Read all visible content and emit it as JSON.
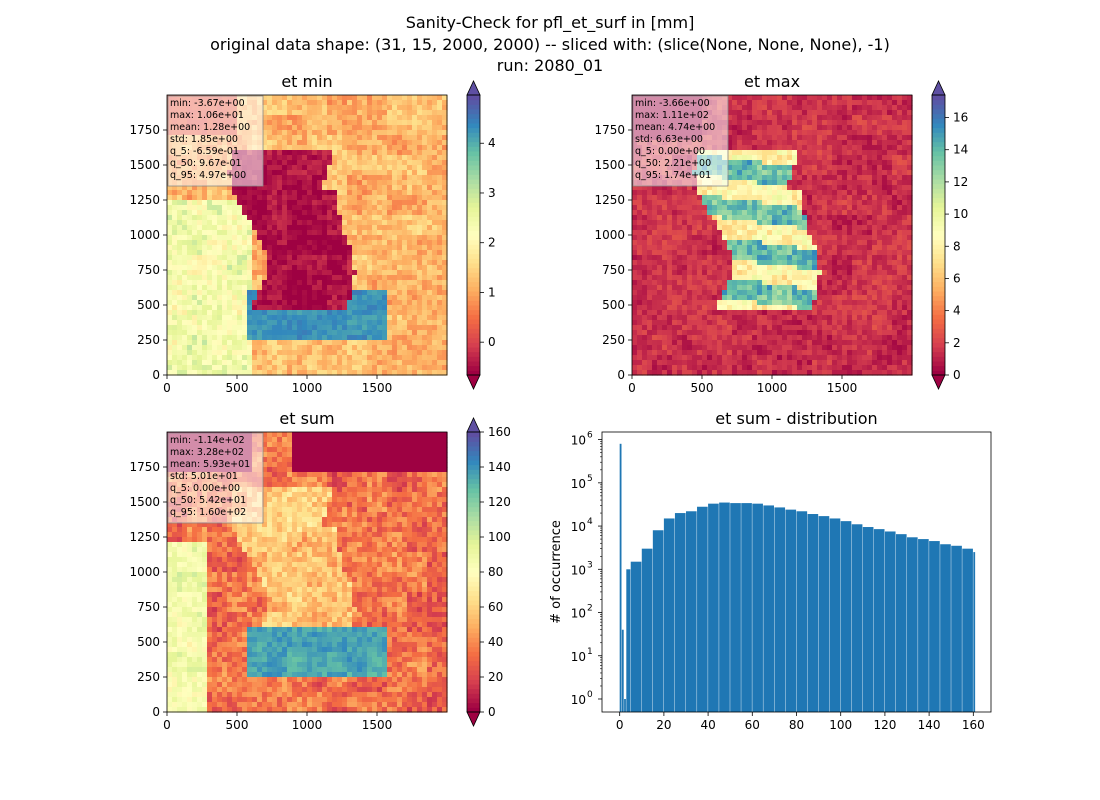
{
  "figure": {
    "suptitle_lines": [
      "Sanity-Check for pfl_et_surf in [mm]",
      "original data shape: (31, 15, 2000, 2000) -- sliced with: (slice(None, None, None), -1)",
      "run: 2080_01"
    ]
  },
  "chart_data": [
    {
      "type": "heatmap",
      "title": "et min",
      "xlabel": "",
      "ylabel": "",
      "x_ticks": [
        0,
        500,
        1000,
        1500
      ],
      "y_ticks": [
        0,
        250,
        500,
        750,
        1000,
        1250,
        1500,
        1750
      ],
      "xlim": [
        0,
        2000
      ],
      "ylim": [
        0,
        2000
      ],
      "colormap": "Spectral",
      "colorbar": {
        "ticks": [
          0,
          1,
          2,
          3,
          4
        ],
        "range": [
          -0.66,
          4.97
        ],
        "extend": "both"
      },
      "stats": [
        "min: -3.67e+00",
        "max: 1.06e+01",
        "mean: 1.28e+00",
        "std: 1.85e+00",
        "q_5: -6.59e-01",
        "q_50: 9.67e-01",
        "q_95: 4.97e+00"
      ]
    },
    {
      "type": "heatmap",
      "title": "et max",
      "xlabel": "",
      "ylabel": "",
      "x_ticks": [
        0,
        500,
        1000,
        1500
      ],
      "y_ticks": [
        0,
        250,
        500,
        750,
        1000,
        1250,
        1500,
        1750
      ],
      "xlim": [
        0,
        2000
      ],
      "ylim": [
        0,
        2000
      ],
      "colormap": "Spectral",
      "colorbar": {
        "ticks": [
          0,
          2,
          4,
          6,
          8,
          10,
          12,
          14,
          16
        ],
        "range": [
          0,
          17.4
        ],
        "extend": "both"
      },
      "stats": [
        "min: -3.66e+00",
        "max: 1.11e+02",
        "mean: 4.74e+00",
        "std: 6.63e+00",
        "q_5: 0.00e+00",
        "q_50: 2.21e+00",
        "q_95: 1.74e+01"
      ]
    },
    {
      "type": "heatmap",
      "title": "et sum",
      "xlabel": "",
      "ylabel": "",
      "x_ticks": [
        0,
        500,
        1000,
        1500
      ],
      "y_ticks": [
        0,
        250,
        500,
        750,
        1000,
        1250,
        1500,
        1750
      ],
      "xlim": [
        0,
        2000
      ],
      "ylim": [
        0,
        2000
      ],
      "colormap": "Spectral",
      "colorbar": {
        "ticks": [
          0,
          20,
          40,
          60,
          80,
          100,
          120,
          140,
          160
        ],
        "range": [
          0,
          160
        ],
        "extend": "both"
      },
      "stats": [
        "min: -1.14e+02",
        "max: 3.28e+02",
        "mean: 5.93e+01",
        "std: 5.01e+01",
        "q_5: 0.00e+00",
        "q_50: 5.42e+01",
        "q_95: 1.60e+02"
      ]
    },
    {
      "type": "bar",
      "title": "et sum - distribution",
      "xlabel": "",
      "ylabel": "# of occurrence",
      "y_scale": "log",
      "xlim": [
        -8,
        168
      ],
      "ylim": [
        0.5,
        1500000
      ],
      "x_ticks": [
        0,
        20,
        40,
        60,
        80,
        100,
        120,
        140,
        160
      ],
      "y_ticks": [
        {
          "value": 1,
          "label": "10",
          "exp": "0"
        },
        {
          "value": 10,
          "label": "10",
          "exp": "1"
        },
        {
          "value": 100,
          "label": "10",
          "exp": "2"
        },
        {
          "value": 1000,
          "label": "10",
          "exp": "3"
        },
        {
          "value": 10000,
          "label": "10",
          "exp": "4"
        },
        {
          "value": 100000,
          "label": "10",
          "exp": "5"
        },
        {
          "value": 1000000,
          "label": "10",
          "exp": "6"
        }
      ],
      "bar_color": "#1f77b4",
      "bins": [
        {
          "x": 0,
          "y": 800000
        },
        {
          "x": 1,
          "y": 40
        },
        {
          "x": 2,
          "y": 1
        },
        {
          "x": 3,
          "y": 1000
        },
        {
          "x": 5,
          "y": 1500
        },
        {
          "x": 10,
          "y": 3000
        },
        {
          "x": 15,
          "y": 8000
        },
        {
          "x": 20,
          "y": 15000
        },
        {
          "x": 25,
          "y": 20000
        },
        {
          "x": 30,
          "y": 22000
        },
        {
          "x": 35,
          "y": 28000
        },
        {
          "x": 40,
          "y": 33000
        },
        {
          "x": 45,
          "y": 35000
        },
        {
          "x": 50,
          "y": 34000
        },
        {
          "x": 55,
          "y": 34000
        },
        {
          "x": 60,
          "y": 33000
        },
        {
          "x": 65,
          "y": 30000
        },
        {
          "x": 70,
          "y": 27000
        },
        {
          "x": 75,
          "y": 24000
        },
        {
          "x": 80,
          "y": 22000
        },
        {
          "x": 85,
          "y": 19000
        },
        {
          "x": 90,
          "y": 17000
        },
        {
          "x": 95,
          "y": 15000
        },
        {
          "x": 100,
          "y": 13000
        },
        {
          "x": 105,
          "y": 11000
        },
        {
          "x": 110,
          "y": 9500
        },
        {
          "x": 115,
          "y": 8500
        },
        {
          "x": 120,
          "y": 7500
        },
        {
          "x": 125,
          "y": 6500
        },
        {
          "x": 130,
          "y": 5500
        },
        {
          "x": 135,
          "y": 5000
        },
        {
          "x": 140,
          "y": 4500
        },
        {
          "x": 145,
          "y": 3800
        },
        {
          "x": 150,
          "y": 3500
        },
        {
          "x": 155,
          "y": 3000
        },
        {
          "x": 160,
          "y": 2500
        }
      ]
    }
  ]
}
